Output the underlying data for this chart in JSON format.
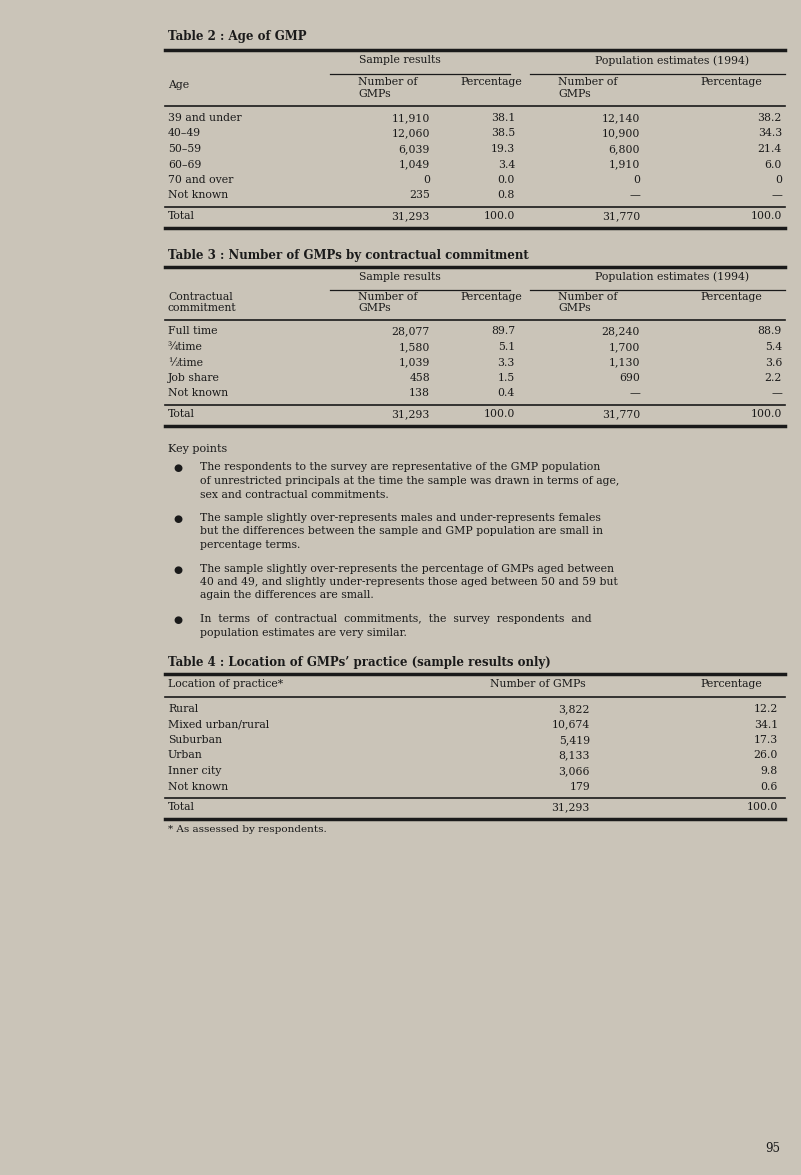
{
  "bg_color": "#cac4b8",
  "text_color": "#1a1a1a",
  "table2_title": "Table 2 : Age of GMP",
  "table3_title": "Table 3 : Number of GMPs by contractual commitment",
  "table2_rows": [
    [
      "39 and under",
      "11,910",
      "38.1",
      "12,140",
      "38.2"
    ],
    [
      "40–49",
      "12,060",
      "38.5",
      "10,900",
      "34.3"
    ],
    [
      "50–59",
      "6,039",
      "19.3",
      "6,800",
      "21.4"
    ],
    [
      "60–69",
      "1,049",
      "3.4",
      "1,910",
      "6.0"
    ],
    [
      "70 and over",
      "0",
      "0.0",
      "0",
      "0"
    ],
    [
      "Not known",
      "235",
      "0.8",
      "—",
      "—"
    ]
  ],
  "table2_total": [
    "Total",
    "31,293",
    "100.0",
    "31,770",
    "100.0"
  ],
  "table3_rows": [
    [
      "Full time",
      "28,077",
      "89.7",
      "28,240",
      "88.9"
    ],
    [
      "¾time",
      "1,580",
      "5.1",
      "1,700",
      "5.4"
    ],
    [
      "½time",
      "1,039",
      "3.3",
      "1,130",
      "3.6"
    ],
    [
      "Job share",
      "458",
      "1.5",
      "690",
      "2.2"
    ],
    [
      "Not known",
      "138",
      "0.4",
      "—",
      "—"
    ]
  ],
  "table3_total": [
    "Total",
    "31,293",
    "100.0",
    "31,770",
    "100.0"
  ],
  "key_points_title": "Key points",
  "table4_title": "Table 4 : Location of GMPs’ practice (sample results only)",
  "table4_headers": [
    "Location of practice*",
    "Number of GMPs",
    "Percentage"
  ],
  "table4_rows": [
    [
      "Rural",
      "3,822",
      "12.2"
    ],
    [
      "Mixed urban/rural",
      "10,674",
      "34.1"
    ],
    [
      "Suburban",
      "5,419",
      "17.3"
    ],
    [
      "Urban",
      "8,133",
      "26.0"
    ],
    [
      "Inner city",
      "3,066",
      "9.8"
    ],
    [
      "Not known",
      "179",
      "0.6"
    ]
  ],
  "table4_total": [
    "Total",
    "31,293",
    "100.0"
  ],
  "table4_footnote": "* As assessed by respondents.",
  "page_number": "95"
}
